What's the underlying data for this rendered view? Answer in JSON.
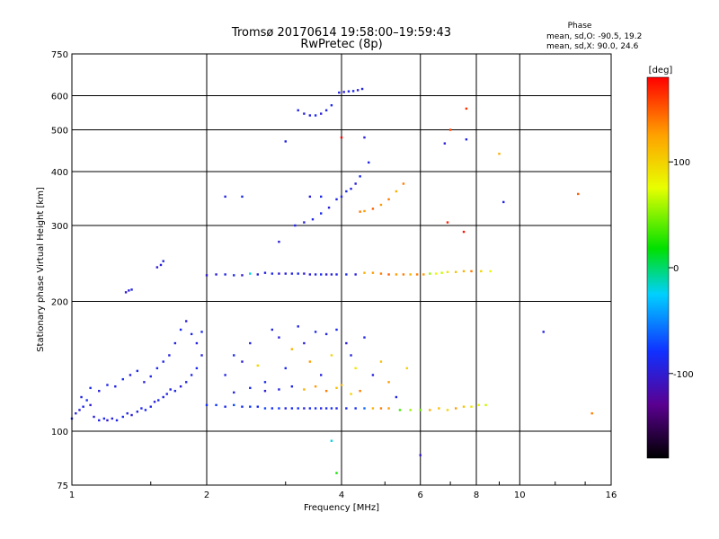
{
  "chart_data": {
    "type": "scatter",
    "title": "Tromsø 20170614 19:58:00–19:59:43",
    "subtitle": "RwPretec (8p)",
    "xlabel": "Frequency [MHz]",
    "ylabel": "Stationary phase Virtual Height [km]",
    "x_scale": "log",
    "y_scale": "log",
    "xlim": [
      1,
      16
    ],
    "ylim": [
      75,
      750
    ],
    "x_ticks": [
      "1",
      "2",
      "4",
      "6",
      "8",
      "10",
      "16"
    ],
    "y_ticks": [
      "75",
      "100",
      "200",
      "300",
      "400",
      "500",
      "600",
      "750"
    ],
    "grid": true,
    "phase_info": {
      "heading": "Phase",
      "line_o": "mean, sd,O: -90.5, 19.2",
      "line_x": "mean, sd,X:  90.0, 24.6"
    },
    "colorbar": {
      "label": "[deg]",
      "range": [
        -180,
        180
      ],
      "ticks": [
        "100",
        "0",
        "-100"
      ],
      "colors": [
        "#000000",
        "#5a0090",
        "#1030ff",
        "#00d0ff",
        "#00e000",
        "#e8ff00",
        "#ffa000",
        "#ff0000"
      ]
    },
    "series": [
      {
        "points": [
          [
            1.0,
            107,
            -85
          ],
          [
            1.02,
            110,
            -90
          ],
          [
            1.04,
            112,
            -95
          ],
          [
            1.06,
            114,
            -88
          ],
          [
            1.08,
            118,
            -80
          ],
          [
            1.1,
            115,
            -100
          ],
          [
            1.12,
            108,
            -95
          ],
          [
            1.15,
            106,
            -90
          ],
          [
            1.18,
            107,
            -85
          ],
          [
            1.2,
            106,
            -100
          ],
          [
            1.23,
            107,
            -92
          ],
          [
            1.26,
            106,
            -88
          ],
          [
            1.3,
            108,
            -85
          ],
          [
            1.33,
            110,
            -90
          ],
          [
            1.36,
            109,
            -95
          ],
          [
            1.4,
            111,
            -92
          ],
          [
            1.43,
            113,
            -88
          ],
          [
            1.46,
            112,
            -85
          ],
          [
            1.5,
            114,
            -90
          ],
          [
            1.53,
            117,
            -95
          ],
          [
            1.56,
            118,
            -85
          ],
          [
            1.6,
            120,
            -90
          ],
          [
            1.63,
            122,
            -88
          ],
          [
            1.66,
            125,
            -92
          ],
          [
            1.7,
            124,
            -85
          ],
          [
            1.75,
            127,
            -95
          ],
          [
            1.8,
            130,
            -90
          ],
          [
            1.85,
            135,
            -88
          ],
          [
            1.9,
            140,
            -85
          ],
          [
            1.95,
            150,
            -92
          ],
          [
            1.05,
            120,
            -90
          ],
          [
            1.1,
            126,
            -85
          ],
          [
            1.15,
            124,
            -95
          ],
          [
            1.2,
            128,
            -88
          ],
          [
            1.25,
            127,
            -90
          ],
          [
            1.3,
            132,
            -85
          ],
          [
            1.35,
            135,
            -92
          ],
          [
            1.4,
            138,
            -88
          ],
          [
            1.45,
            130,
            -95
          ],
          [
            1.5,
            134,
            -90
          ],
          [
            1.55,
            140,
            -85
          ],
          [
            1.6,
            145,
            -88
          ],
          [
            1.65,
            150,
            -92
          ],
          [
            1.7,
            160,
            -90
          ],
          [
            1.75,
            172,
            -85
          ],
          [
            1.8,
            180,
            -95
          ],
          [
            1.85,
            168,
            -88
          ],
          [
            1.9,
            160,
            -90
          ],
          [
            1.95,
            170,
            -85
          ],
          [
            1.32,
            210,
            -100
          ],
          [
            1.34,
            212,
            -95
          ],
          [
            1.36,
            213,
            -90
          ],
          [
            1.55,
            240,
            -100
          ],
          [
            1.58,
            243,
            -95
          ],
          [
            1.6,
            248,
            -90
          ],
          [
            2.0,
            115,
            -80
          ],
          [
            2.1,
            115,
            -75
          ],
          [
            2.2,
            114,
            -85
          ],
          [
            2.3,
            115,
            -70
          ],
          [
            2.4,
            114,
            -80
          ],
          [
            2.5,
            114,
            -75
          ],
          [
            2.6,
            114,
            -85
          ],
          [
            2.7,
            113,
            -70
          ],
          [
            2.8,
            113,
            -80
          ],
          [
            2.9,
            113,
            -75
          ],
          [
            3.0,
            113,
            -90
          ],
          [
            3.1,
            113,
            -85
          ],
          [
            3.2,
            113,
            -80
          ],
          [
            3.3,
            113,
            -95
          ],
          [
            3.4,
            113,
            -85
          ],
          [
            3.5,
            113,
            -80
          ],
          [
            3.6,
            113,
            -90
          ],
          [
            3.7,
            113,
            -85
          ],
          [
            3.8,
            113,
            -80
          ],
          [
            3.9,
            113,
            -90
          ],
          [
            4.1,
            113,
            -85
          ],
          [
            4.3,
            113,
            -80
          ],
          [
            4.5,
            113,
            -60
          ],
          [
            4.7,
            113,
            120
          ],
          [
            4.9,
            113,
            140
          ],
          [
            5.1,
            113,
            130
          ],
          [
            5.4,
            112,
            40
          ],
          [
            5.7,
            112,
            60
          ],
          [
            6.0,
            112,
            50
          ],
          [
            6.3,
            112,
            120
          ],
          [
            6.6,
            113,
            110
          ],
          [
            6.9,
            112,
            100
          ],
          [
            7.2,
            113,
            130
          ],
          [
            7.5,
            114,
            110
          ],
          [
            7.8,
            114,
            90
          ],
          [
            8.1,
            115,
            80
          ],
          [
            8.4,
            115,
            70
          ],
          [
            2.0,
            230,
            -100
          ],
          [
            2.1,
            231,
            -95
          ],
          [
            2.2,
            231,
            -90
          ],
          [
            2.3,
            230,
            -85
          ],
          [
            2.4,
            230,
            -100
          ],
          [
            2.5,
            232,
            -20
          ],
          [
            2.6,
            231,
            -95
          ],
          [
            2.7,
            233,
            -90
          ],
          [
            2.8,
            232,
            -85
          ],
          [
            2.9,
            232,
            -100
          ],
          [
            3.0,
            232,
            -95
          ],
          [
            3.1,
            232,
            -90
          ],
          [
            3.2,
            232,
            -85
          ],
          [
            3.3,
            232,
            -100
          ],
          [
            3.4,
            231,
            -95
          ],
          [
            3.5,
            231,
            -90
          ],
          [
            3.6,
            231,
            -85
          ],
          [
            3.7,
            231,
            -100
          ],
          [
            3.8,
            231,
            -95
          ],
          [
            3.9,
            231,
            -90
          ],
          [
            4.1,
            231,
            -85
          ],
          [
            4.3,
            231,
            -95
          ],
          [
            4.5,
            233,
            120
          ],
          [
            4.7,
            233,
            130
          ],
          [
            4.9,
            232,
            140
          ],
          [
            5.1,
            231,
            150
          ],
          [
            5.3,
            231,
            130
          ],
          [
            5.5,
            231,
            140
          ],
          [
            5.7,
            231,
            120
          ],
          [
            5.9,
            231,
            140
          ],
          [
            6.1,
            231,
            130
          ],
          [
            6.3,
            232,
            60
          ],
          [
            6.5,
            232,
            80
          ],
          [
            6.7,
            233,
            70
          ],
          [
            6.9,
            234,
            90
          ],
          [
            7.2,
            234,
            110
          ],
          [
            7.5,
            235,
            120
          ],
          [
            7.8,
            235,
            140
          ],
          [
            8.2,
            235,
            100
          ],
          [
            8.6,
            235,
            80
          ],
          [
            2.2,
            135,
            -90
          ],
          [
            2.3,
            150,
            -85
          ],
          [
            2.4,
            145,
            -95
          ],
          [
            2.5,
            160,
            -90
          ],
          [
            2.6,
            142,
            100
          ],
          [
            2.7,
            130,
            -85
          ],
          [
            2.8,
            172,
            -90
          ],
          [
            2.9,
            165,
            -95
          ],
          [
            3.0,
            140,
            -85
          ],
          [
            3.1,
            155,
            120
          ],
          [
            3.2,
            175,
            -90
          ],
          [
            3.3,
            160,
            -95
          ],
          [
            3.4,
            145,
            130
          ],
          [
            3.5,
            170,
            -88
          ],
          [
            3.6,
            135,
            -92
          ],
          [
            3.7,
            168,
            -90
          ],
          [
            3.8,
            150,
            100
          ],
          [
            3.9,
            172,
            -85
          ],
          [
            4.1,
            160,
            -95
          ],
          [
            4.2,
            150,
            -90
          ],
          [
            4.3,
            140,
            90
          ],
          [
            4.5,
            165,
            -88
          ],
          [
            4.7,
            135,
            -92
          ],
          [
            4.9,
            145,
            110
          ],
          [
            5.1,
            130,
            130
          ],
          [
            5.3,
            120,
            -90
          ],
          [
            5.6,
            140,
            100
          ],
          [
            3.3,
            125,
            120
          ],
          [
            3.5,
            127,
            130
          ],
          [
            3.7,
            124,
            140
          ],
          [
            3.9,
            126,
            110
          ],
          [
            4.0,
            128,
            120
          ],
          [
            4.2,
            122,
            100
          ],
          [
            4.4,
            124,
            140
          ],
          [
            2.3,
            123,
            -90
          ],
          [
            2.5,
            126,
            -85
          ],
          [
            2.7,
            124,
            -95
          ],
          [
            2.9,
            125,
            -92
          ],
          [
            3.1,
            127,
            -88
          ],
          [
            3.15,
            300,
            -90
          ],
          [
            3.3,
            305,
            -95
          ],
          [
            3.45,
            310,
            -90
          ],
          [
            3.6,
            320,
            -85
          ],
          [
            3.75,
            330,
            -95
          ],
          [
            3.9,
            345,
            -90
          ],
          [
            4.0,
            350,
            -88
          ],
          [
            4.1,
            360,
            -85
          ],
          [
            4.2,
            365,
            -90
          ],
          [
            4.3,
            375,
            -95
          ],
          [
            4.4,
            390,
            -85
          ],
          [
            4.4,
            323,
            140
          ],
          [
            4.5,
            324,
            130
          ],
          [
            4.7,
            328,
            150
          ],
          [
            4.9,
            335,
            130
          ],
          [
            5.1,
            345,
            140
          ],
          [
            5.3,
            360,
            120
          ],
          [
            5.5,
            375,
            140
          ],
          [
            3.2,
            555,
            -90
          ],
          [
            3.3,
            545,
            -95
          ],
          [
            3.4,
            540,
            -90
          ],
          [
            3.5,
            540,
            -85
          ],
          [
            3.6,
            545,
            -95
          ],
          [
            3.7,
            555,
            -90
          ],
          [
            3.8,
            570,
            -85
          ],
          [
            3.95,
            610,
            -90
          ],
          [
            4.05,
            612,
            -95
          ],
          [
            4.15,
            614,
            -90
          ],
          [
            4.25,
            615,
            -85
          ],
          [
            4.35,
            618,
            -95
          ],
          [
            4.45,
            622,
            -90
          ],
          [
            3.0,
            470,
            -90
          ],
          [
            3.4,
            350,
            -95
          ],
          [
            3.6,
            350,
            -85
          ],
          [
            2.2,
            350,
            -90
          ],
          [
            2.4,
            350,
            -85
          ],
          [
            2.9,
            275,
            -95
          ],
          [
            4.0,
            480,
            180
          ],
          [
            4.5,
            480,
            -95
          ],
          [
            4.6,
            420,
            -90
          ],
          [
            6.8,
            465,
            -95
          ],
          [
            7.6,
            475,
            -90
          ],
          [
            7.0,
            500,
            160
          ],
          [
            7.6,
            560,
            165
          ],
          [
            9.0,
            440,
            120
          ],
          [
            6.9,
            305,
            170
          ],
          [
            7.5,
            290,
            175
          ],
          [
            13.5,
            355,
            150
          ],
          [
            14.5,
            110,
            140
          ],
          [
            11.3,
            170,
            -90
          ],
          [
            6.0,
            88,
            -100
          ],
          [
            3.8,
            95,
            -20
          ],
          [
            3.9,
            80,
            30
          ],
          [
            9.2,
            340,
            -90
          ]
        ]
      }
    ]
  }
}
